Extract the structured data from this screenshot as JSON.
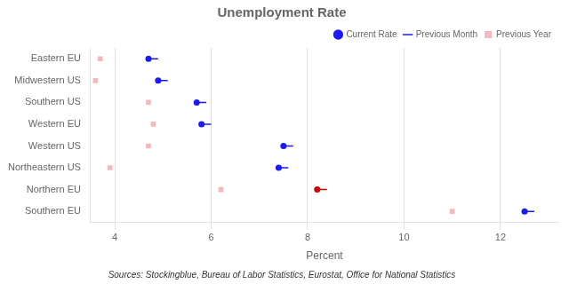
{
  "chart_data": {
    "type": "dumbbell",
    "title": "Unemployment Rate",
    "xlabel": "Percent",
    "annotations": [
      "Sources: Stockingblue, Bureau of Labor Statistics, Eurostat, Office for National Statistics"
    ],
    "orientation": "horizontal",
    "categories": [
      "Eastern EU",
      "Midwestern US",
      "Southern US",
      "Western EU",
      "Western US",
      "Northeastern US",
      "Northern EU",
      "Southern EU"
    ],
    "series": [
      {
        "name": "Current Rate",
        "type": "scatter",
        "marker": "circle",
        "colors": [
          "#1a1aff",
          "#1a1aff",
          "#1a1aff",
          "#1a1aff",
          "#1a1aff",
          "#1a1aff",
          "#cc0000",
          "#1a1aff"
        ],
        "values": [
          4.7,
          4.9,
          5.7,
          5.8,
          7.5,
          7.4,
          8.2,
          12.5
        ]
      },
      {
        "name": "Previous Month",
        "type": "line",
        "colors": [
          "#1a1aff",
          "#1a1aff",
          "#1a1aff",
          "#1a1aff",
          "#1a1aff",
          "#1a1aff",
          "#cc0000",
          "#1a1aff"
        ],
        "values": [
          4.9,
          5.1,
          5.9,
          6.0,
          7.7,
          7.6,
          8.4,
          12.7
        ]
      },
      {
        "name": "Previous Year",
        "type": "scatter",
        "marker": "square",
        "color": "#f4b8c0",
        "values": [
          3.7,
          3.6,
          4.7,
          4.8,
          4.7,
          3.9,
          6.2,
          11.0
        ]
      }
    ],
    "xlim": [
      3.5,
      13.2
    ],
    "xticks": [
      4,
      6,
      8,
      10,
      12
    ],
    "grid": true,
    "legend": "upper right"
  }
}
